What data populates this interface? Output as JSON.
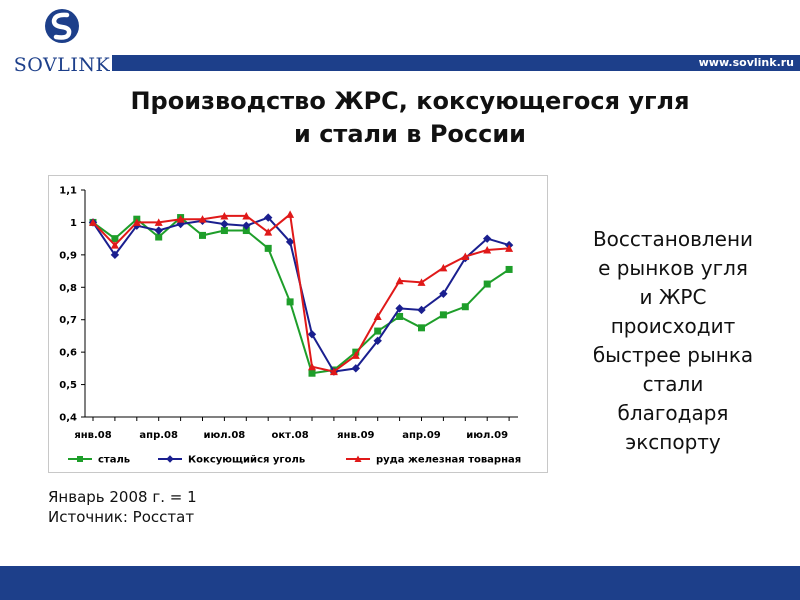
{
  "header": {
    "logo_text": "SOVLINK",
    "site_url": "www.sovlink.ru"
  },
  "slide": {
    "title_line1": "Производство ЖРС, коксующегося угля",
    "title_line2": "и стали в России",
    "side_text": [
      "Восстановлени",
      "е рынков угля",
      "и ЖРС",
      "происходит",
      "быстрее рынка",
      "стали",
      "благодаря",
      "экспорту"
    ],
    "note_line1": "Январь 2008 г. = 1",
    "note_line2": "Источник: Росстат"
  },
  "colors": {
    "brand": "#1d3f8a",
    "steel": "#1e9e2a",
    "coal": "#1a1f8f",
    "ore": "#e01919"
  },
  "chart_data": {
    "type": "line",
    "x_tick_labels": [
      "янв.08",
      "апр.08",
      "июл.08",
      "окт.08",
      "янв.09",
      "апр.09",
      "июл.09"
    ],
    "y_tick_labels": [
      "0,4",
      "0,5",
      "0,6",
      "0,7",
      "0,8",
      "0,9",
      "1",
      "1,1"
    ],
    "ylim": [
      0.4,
      1.1
    ],
    "legend_position": "bottom",
    "grid": "none",
    "series": [
      {
        "name": "сталь",
        "marker": "square",
        "color": "#1e9e2a",
        "values": [
          1.0,
          0.95,
          1.01,
          0.955,
          1.015,
          0.96,
          0.975,
          0.975,
          0.92,
          0.755,
          0.535,
          0.545,
          0.6,
          0.665,
          0.71,
          0.675,
          0.715,
          0.74,
          0.81,
          0.855
        ]
      },
      {
        "name": "Коксующийся уголь",
        "marker": "diamond",
        "color": "#1a1f8f",
        "values": [
          1.0,
          0.9,
          0.99,
          0.975,
          0.995,
          1.005,
          0.995,
          0.99,
          1.015,
          0.94,
          0.655,
          0.54,
          0.55,
          0.635,
          0.735,
          0.73,
          0.78,
          0.89,
          0.95,
          0.93
        ]
      },
      {
        "name": "руда железная товарная",
        "marker": "triangle",
        "color": "#e01919",
        "values": [
          1.0,
          0.93,
          1.0,
          1.0,
          1.01,
          1.01,
          1.02,
          1.02,
          0.97,
          1.025,
          0.555,
          0.54,
          0.59,
          0.71,
          0.82,
          0.815,
          0.86,
          0.895,
          0.915,
          0.92
        ]
      }
    ]
  }
}
